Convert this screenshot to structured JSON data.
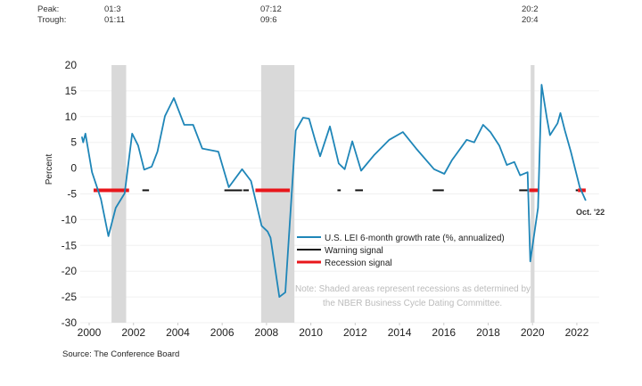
{
  "chart_data": {
    "type": "line",
    "title": "",
    "xlabel": "",
    "ylabel": "Percent",
    "xlim": [
      1999.6,
      2023
    ],
    "ylim": [
      -30,
      20
    ],
    "y_ticks": [
      20,
      15,
      10,
      5,
      0,
      -5,
      -10,
      -15,
      -20,
      -25,
      -30
    ],
    "x_ticks": [
      2000,
      2002,
      2004,
      2006,
      2008,
      2010,
      2012,
      2014,
      2016,
      2018,
      2020,
      2022
    ],
    "grid": "horizontal",
    "legend_placement": "center-right",
    "colors": {
      "series": "#1f86b8",
      "warning": "#111111",
      "recession": "#e8161b",
      "shade": "#d9d9d9"
    },
    "series": [
      {
        "name": "U.S. LEI 6-month growth rate (%, annualized)",
        "points": [
          [
            1999.67,
            6.1
          ],
          [
            1999.73,
            5.0
          ],
          [
            1999.83,
            6.7
          ],
          [
            2000.13,
            -0.8
          ],
          [
            2000.53,
            -6.0
          ],
          [
            2000.87,
            -13.2
          ],
          [
            2001.2,
            -7.7
          ],
          [
            2001.6,
            -4.9
          ],
          [
            2001.94,
            6.7
          ],
          [
            2002.21,
            4.4
          ],
          [
            2002.48,
            -0.3
          ],
          [
            2002.82,
            0.3
          ],
          [
            2003.08,
            3.2
          ],
          [
            2003.42,
            10.1
          ],
          [
            2003.82,
            13.6
          ],
          [
            2004.29,
            8.4
          ],
          [
            2004.69,
            8.4
          ],
          [
            2005.1,
            3.8
          ],
          [
            2005.83,
            3.2
          ],
          [
            2006.3,
            -3.7
          ],
          [
            2006.9,
            -0.2
          ],
          [
            2007.3,
            -2.5
          ],
          [
            2007.78,
            -11.2
          ],
          [
            2008.05,
            -12.3
          ],
          [
            2008.18,
            -13.5
          ],
          [
            2008.58,
            -25.0
          ],
          [
            2008.85,
            -24.1
          ],
          [
            2009.32,
            7.3
          ],
          [
            2009.65,
            9.8
          ],
          [
            2009.92,
            9.6
          ],
          [
            2010.19,
            5.5
          ],
          [
            2010.42,
            2.3
          ],
          [
            2010.86,
            8.1
          ],
          [
            2011.26,
            0.9
          ],
          [
            2011.53,
            -0.2
          ],
          [
            2011.87,
            5.2
          ],
          [
            2012.27,
            -0.5
          ],
          [
            2012.87,
            2.6
          ],
          [
            2013.54,
            5.5
          ],
          [
            2014.15,
            7.0
          ],
          [
            2014.75,
            3.8
          ],
          [
            2015.56,
            -0.2
          ],
          [
            2016.02,
            -1.1
          ],
          [
            2016.36,
            1.5
          ],
          [
            2017.03,
            5.5
          ],
          [
            2017.37,
            5.0
          ],
          [
            2017.77,
            8.4
          ],
          [
            2018.1,
            7.0
          ],
          [
            2018.5,
            4.4
          ],
          [
            2018.84,
            0.6
          ],
          [
            2019.18,
            1.2
          ],
          [
            2019.44,
            -1.4
          ],
          [
            2019.78,
            -0.8
          ],
          [
            2019.9,
            -18.1
          ],
          [
            2020.25,
            -7.7
          ],
          [
            2020.41,
            16.2
          ],
          [
            2020.65,
            9.6
          ],
          [
            2020.79,
            6.4
          ],
          [
            2021.13,
            8.7
          ],
          [
            2021.26,
            10.7
          ],
          [
            2021.46,
            7.3
          ],
          [
            2021.73,
            3.2
          ],
          [
            2022.13,
            -3.7
          ],
          [
            2022.4,
            -6.3
          ]
        ]
      },
      {
        "name": "Warning signal",
        "level": -4.3,
        "segments": [
          [
            2002.4,
            2002.7
          ],
          [
            2006.1,
            2006.9
          ],
          [
            2006.95,
            2007.2
          ],
          [
            2011.2,
            2011.35
          ],
          [
            2012.0,
            2012.35
          ],
          [
            2015.5,
            2016.0
          ],
          [
            2019.4,
            2019.8
          ],
          [
            2021.95,
            2022.05
          ]
        ]
      },
      {
        "name": "Recession signal",
        "level": -4.3,
        "segments": [
          [
            2000.2,
            2001.8
          ],
          [
            2007.5,
            2009.05
          ],
          [
            2019.85,
            2020.3
          ],
          [
            2022.05,
            2022.4
          ]
        ]
      }
    ],
    "recessions": [
      {
        "peak": "01:3",
        "trough": "01:11",
        "start": 2001.17,
        "end": 2001.83
      },
      {
        "peak": "07:12",
        "trough": "09:6",
        "start": 2007.92,
        "end": 2009.42
      },
      {
        "peak": "20:2",
        "trough": "20:4",
        "start": 2020.08,
        "end": 2020.25
      }
    ],
    "peak_label": "Peak:",
    "trough_label": "Trough:",
    "annotation": "Oct. '22",
    "note_line1": "Note: Shaded areas represent recessions as determined by",
    "note_line2": "the NBER Business Cycle Dating Committee.",
    "source": "Source: The Conference Board"
  }
}
